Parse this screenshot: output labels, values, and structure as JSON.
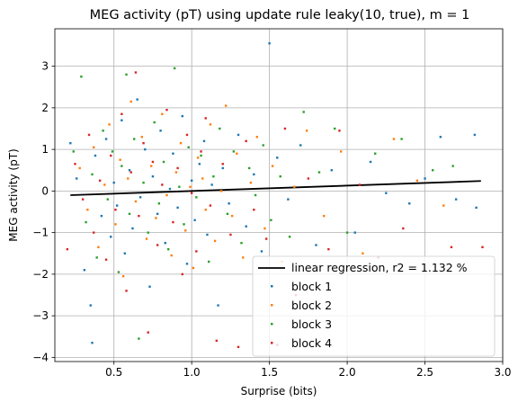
{
  "chart_data": {
    "type": "scatter",
    "title": "MEG activity (pT) using update rule leaky(10, true), m = 1",
    "xlabel": "Surprise (bits)",
    "ylabel": "MEG activity (pT)",
    "xlim": [
      0.12,
      3.0
    ],
    "ylim": [
      -4.1,
      3.9
    ],
    "xticks": [
      0.5,
      1.0,
      1.5,
      2.0,
      2.5,
      3.0
    ],
    "xtick_labels": [
      "0.5",
      "1.0",
      "1.5",
      "2.0",
      "2.5",
      "3.0"
    ],
    "yticks": [
      -4,
      -3,
      -2,
      -1,
      0,
      1,
      2,
      3
    ],
    "ytick_labels": [
      "−4",
      "−3",
      "−2",
      "−1",
      "0",
      "1",
      "2",
      "3"
    ],
    "grid": true,
    "legend_position": "lower right",
    "regression": {
      "label": "linear regression, r2 = 1.132 %",
      "color": "#000000",
      "points": [
        [
          0.22,
          -0.1
        ],
        [
          2.86,
          0.24
        ]
      ]
    },
    "series": [
      {
        "name": "block 1",
        "color": "#1f77b4",
        "points": [
          [
            0.22,
            1.15
          ],
          [
            0.26,
            0.3
          ],
          [
            0.31,
            -1.9
          ],
          [
            0.35,
            -2.75
          ],
          [
            0.36,
            -3.65
          ],
          [
            0.38,
            0.85
          ],
          [
            0.42,
            -0.6
          ],
          [
            0.45,
            1.25
          ],
          [
            0.48,
            -1.1
          ],
          [
            0.5,
            0.2
          ],
          [
            0.52,
            -0.35
          ],
          [
            0.55,
            1.7
          ],
          [
            0.57,
            -1.5
          ],
          [
            0.6,
            0.5
          ],
          [
            0.62,
            -0.9
          ],
          [
            0.65,
            2.2
          ],
          [
            0.67,
            -0.15
          ],
          [
            0.7,
            1.0
          ],
          [
            0.73,
            -2.3
          ],
          [
            0.75,
            0.35
          ],
          [
            0.78,
            -0.55
          ],
          [
            0.8,
            1.45
          ],
          [
            0.83,
            -1.25
          ],
          [
            0.86,
            0.05
          ],
          [
            0.88,
            0.9
          ],
          [
            0.91,
            -0.4
          ],
          [
            0.94,
            1.8
          ],
          [
            0.97,
            -1.75
          ],
          [
            1.0,
            0.25
          ],
          [
            1.02,
            -0.7
          ],
          [
            1.05,
            0.65
          ],
          [
            1.08,
            1.2
          ],
          [
            1.1,
            -1.05
          ],
          [
            1.13,
            0.15
          ],
          [
            1.17,
            -2.75
          ],
          [
            1.2,
            0.55
          ],
          [
            1.24,
            -0.3
          ],
          [
            1.3,
            1.35
          ],
          [
            1.35,
            -0.85
          ],
          [
            1.4,
            0.4
          ],
          [
            1.45,
            -1.45
          ],
          [
            1.5,
            3.55
          ],
          [
            1.55,
            0.8
          ],
          [
            1.62,
            -0.2
          ],
          [
            1.7,
            1.1
          ],
          [
            1.8,
            -1.3
          ],
          [
            1.9,
            0.5
          ],
          [
            2.05,
            -1.0
          ],
          [
            2.15,
            0.7
          ],
          [
            2.25,
            -0.05
          ],
          [
            2.4,
            -0.3
          ],
          [
            2.5,
            0.3
          ],
          [
            2.6,
            1.3
          ],
          [
            2.7,
            -0.2
          ],
          [
            2.82,
            1.35
          ],
          [
            2.83,
            -0.4
          ]
        ]
      },
      {
        "name": "block 2",
        "color": "#ff7f0e",
        "points": [
          [
            0.28,
            0.55
          ],
          [
            0.33,
            -0.45
          ],
          [
            0.37,
            1.05
          ],
          [
            0.4,
            -1.35
          ],
          [
            0.44,
            0.15
          ],
          [
            0.47,
            1.6
          ],
          [
            0.51,
            -0.8
          ],
          [
            0.54,
            0.75
          ],
          [
            0.56,
            -2.05
          ],
          [
            0.59,
            0.3
          ],
          [
            0.61,
            2.15
          ],
          [
            0.64,
            -0.25
          ],
          [
            0.68,
            1.3
          ],
          [
            0.71,
            -1.15
          ],
          [
            0.74,
            0.6
          ],
          [
            0.77,
            -0.65
          ],
          [
            0.81,
            1.85
          ],
          [
            0.84,
            -0.1
          ],
          [
            0.87,
            -1.55
          ],
          [
            0.9,
            0.45
          ],
          [
            0.93,
            1.15
          ],
          [
            0.96,
            -0.95
          ],
          [
            0.99,
            0.1
          ],
          [
            1.01,
            -1.85
          ],
          [
            1.04,
            0.8
          ],
          [
            1.07,
            0.3
          ],
          [
            1.09,
            -0.45
          ],
          [
            1.12,
            1.6
          ],
          [
            1.15,
            -1.2
          ],
          [
            1.19,
            0.0
          ],
          [
            1.22,
            2.05
          ],
          [
            1.26,
            -0.6
          ],
          [
            1.29,
            0.9
          ],
          [
            1.33,
            -1.6
          ],
          [
            1.38,
            0.2
          ],
          [
            1.42,
            1.3
          ],
          [
            1.47,
            -0.9
          ],
          [
            1.52,
            0.6
          ],
          [
            1.58,
            -1.7
          ],
          [
            1.66,
            0.1
          ],
          [
            1.74,
            1.45
          ],
          [
            1.85,
            -0.6
          ],
          [
            1.96,
            0.95
          ],
          [
            2.1,
            -1.5
          ],
          [
            2.3,
            1.25
          ],
          [
            2.45,
            0.25
          ],
          [
            2.62,
            -0.35
          ]
        ]
      },
      {
        "name": "block 3",
        "color": "#2ca02c",
        "points": [
          [
            0.24,
            0.95
          ],
          [
            0.29,
            2.75
          ],
          [
            0.32,
            -0.75
          ],
          [
            0.36,
            0.4
          ],
          [
            0.39,
            -1.6
          ],
          [
            0.43,
            1.45
          ],
          [
            0.46,
            -0.2
          ],
          [
            0.49,
            0.95
          ],
          [
            0.53,
            -1.95
          ],
          [
            0.55,
            0.6
          ],
          [
            0.58,
            2.8
          ],
          [
            0.6,
            -0.55
          ],
          [
            0.63,
            1.25
          ],
          [
            0.66,
            -3.55
          ],
          [
            0.69,
            0.2
          ],
          [
            0.72,
            -1.0
          ],
          [
            0.76,
            1.65
          ],
          [
            0.79,
            -0.3
          ],
          [
            0.82,
            0.7
          ],
          [
            0.85,
            -1.4
          ],
          [
            0.89,
            2.95
          ],
          [
            0.92,
            0.1
          ],
          [
            0.95,
            -0.8
          ],
          [
            0.98,
            1.05
          ],
          [
            1.03,
            -0.15
          ],
          [
            1.06,
            0.85
          ],
          [
            1.11,
            -1.7
          ],
          [
            1.14,
            0.35
          ],
          [
            1.18,
            1.5
          ],
          [
            1.23,
            -0.55
          ],
          [
            1.27,
            0.95
          ],
          [
            1.32,
            -1.25
          ],
          [
            1.37,
            0.55
          ],
          [
            1.41,
            -0.1
          ],
          [
            1.46,
            1.1
          ],
          [
            1.51,
            -0.7
          ],
          [
            1.57,
            0.35
          ],
          [
            1.63,
            -1.1
          ],
          [
            1.72,
            1.9
          ],
          [
            1.82,
            0.45
          ],
          [
            1.92,
            1.5
          ],
          [
            2.0,
            -1.0
          ],
          [
            2.18,
            0.9
          ],
          [
            2.35,
            1.25
          ],
          [
            2.55,
            0.5
          ],
          [
            2.68,
            0.6
          ]
        ]
      },
      {
        "name": "block 4",
        "color": "#d62728",
        "points": [
          [
            0.2,
            -1.4
          ],
          [
            0.25,
            0.65
          ],
          [
            0.3,
            -0.2
          ],
          [
            0.34,
            1.35
          ],
          [
            0.37,
            -1.0
          ],
          [
            0.41,
            0.25
          ],
          [
            0.45,
            -1.65
          ],
          [
            0.48,
            0.85
          ],
          [
            0.51,
            -0.45
          ],
          [
            0.55,
            1.85
          ],
          [
            0.58,
            -2.4
          ],
          [
            0.61,
            0.45
          ],
          [
            0.64,
            2.85
          ],
          [
            0.66,
            -0.6
          ],
          [
            0.69,
            1.15
          ],
          [
            0.72,
            -3.4
          ],
          [
            0.75,
            0.7
          ],
          [
            0.78,
            -1.3
          ],
          [
            0.81,
            0.15
          ],
          [
            0.84,
            1.95
          ],
          [
            0.88,
            -0.75
          ],
          [
            0.91,
            0.55
          ],
          [
            0.94,
            -2.0
          ],
          [
            0.97,
            1.35
          ],
          [
            1.0,
            -0.05
          ],
          [
            1.03,
            -1.45
          ],
          [
            1.06,
            0.95
          ],
          [
            1.09,
            1.75
          ],
          [
            1.12,
            -0.35
          ],
          [
            1.16,
            -3.6
          ],
          [
            1.2,
            0.65
          ],
          [
            1.25,
            -1.05
          ],
          [
            1.3,
            -3.75
          ],
          [
            1.35,
            1.2
          ],
          [
            1.4,
            -0.45
          ],
          [
            1.48,
            -1.15
          ],
          [
            1.55,
            -3.7
          ],
          [
            1.6,
            1.5
          ],
          [
            1.67,
            -2.5
          ],
          [
            1.75,
            0.3
          ],
          [
            1.88,
            -1.4
          ],
          [
            1.95,
            1.45
          ],
          [
            2.08,
            0.15
          ],
          [
            2.2,
            -1.6
          ],
          [
            2.36,
            -0.9
          ],
          [
            2.5,
            -1.9
          ],
          [
            2.67,
            -1.35
          ],
          [
            2.87,
            -1.35
          ]
        ]
      }
    ]
  }
}
